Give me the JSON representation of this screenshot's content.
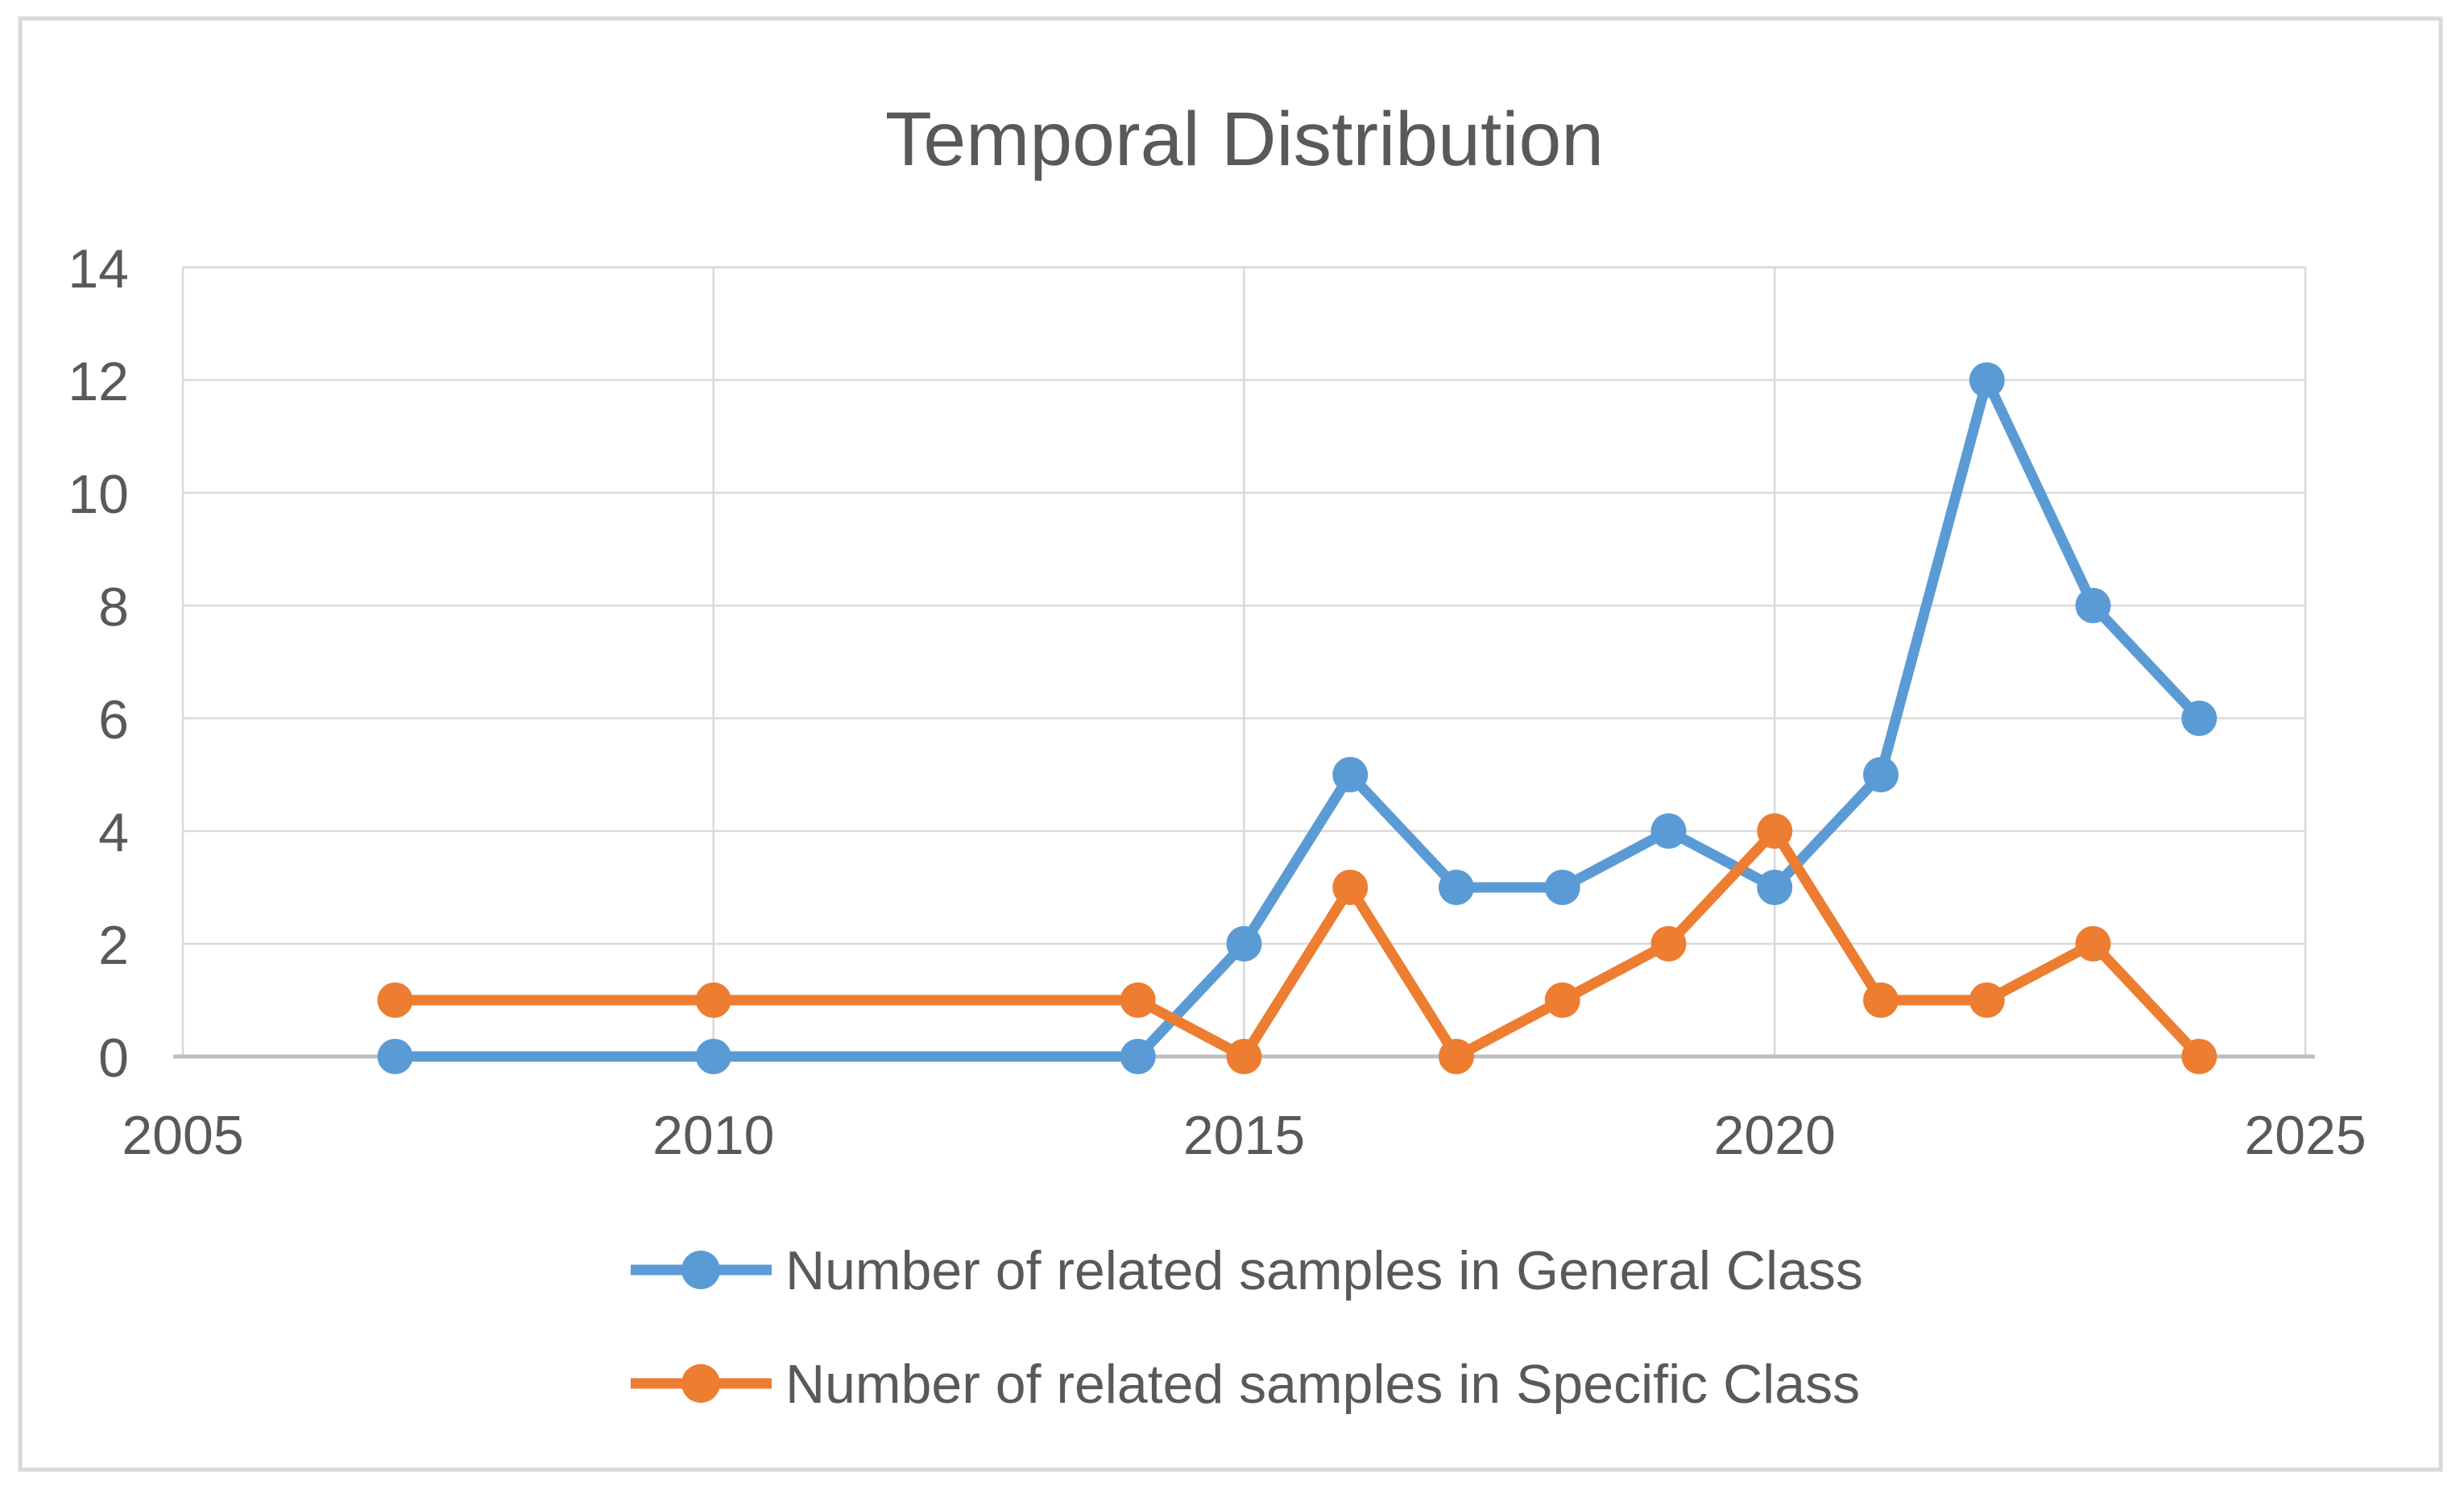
{
  "chart_data": {
    "type": "line",
    "title": "Temporal Distribution",
    "x": [
      2007,
      2010,
      2014,
      2015,
      2016,
      2017,
      2018,
      2019,
      2020,
      2021,
      2022,
      2023,
      2024
    ],
    "series": [
      {
        "name": "Number of related samples in General Class",
        "color": "#5B9BD5",
        "values": [
          0,
          0,
          0,
          2,
          5,
          3,
          3,
          4,
          3,
          5,
          12,
          8,
          6
        ]
      },
      {
        "name": "Number of related samples in Specific Class",
        "color": "#ED7D31",
        "values": [
          1,
          1,
          1,
          0,
          3,
          0,
          1,
          2,
          4,
          1,
          1,
          2,
          0
        ]
      }
    ],
    "xlabel": "",
    "ylabel": "",
    "xlim": [
      2005,
      2025
    ],
    "ylim": [
      0,
      14
    ],
    "x_ticks": [
      2005,
      2010,
      2015,
      2020,
      2025
    ],
    "y_ticks": [
      0,
      2,
      4,
      6,
      8,
      10,
      12,
      14
    ],
    "grid": true,
    "legend_position": "bottom-left",
    "marker": "circle",
    "colors": {
      "text": "#595959",
      "gridline": "#D9D9D9",
      "axis_line": "#BFBFBF",
      "chart_border": "#D9D9D9",
      "background": "#FFFFFF"
    }
  }
}
